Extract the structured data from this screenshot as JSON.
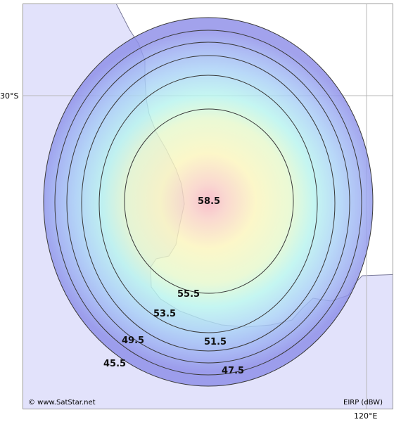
{
  "map": {
    "graticule": {
      "latitude_label": "30°S",
      "longitude_label": "120°E"
    },
    "colors": {
      "ocean": "#e2e2fb",
      "land": "#ffffff",
      "coast": "#7a7a9a",
      "grid": "#b8b8b8",
      "contour_line": "#3a3a3a"
    },
    "beam": {
      "peak_value": "58.5",
      "contours": [
        {
          "value": "55.5"
        },
        {
          "value": "53.5"
        },
        {
          "value": "51.5"
        },
        {
          "value": "49.5"
        },
        {
          "value": "47.5"
        },
        {
          "value": "45.5"
        }
      ],
      "color_scale": [
        "#f7b0c0",
        "#fbf7b8",
        "#b8f4ee",
        "#9eb6f4",
        "#8d8ee8"
      ]
    },
    "footer": {
      "copyright": "© www.SatStar.net",
      "legend_label": "EIRP (dBW)"
    }
  }
}
